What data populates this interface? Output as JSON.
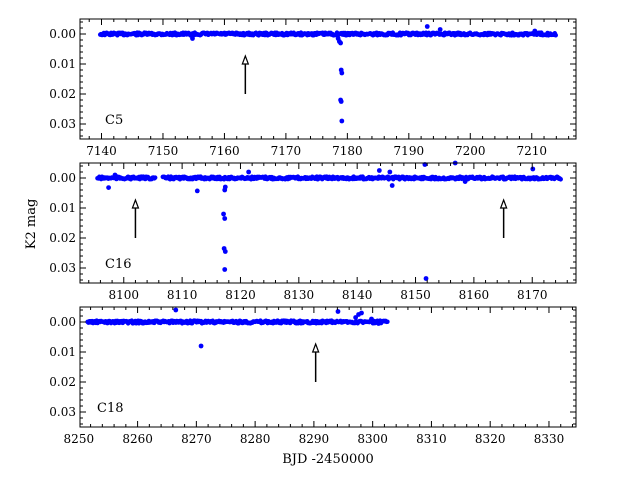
{
  "chart_data": {
    "type": "scatter",
    "ylabel": "K2 mag",
    "xlabel": "BJD -2450000",
    "marker_color": "#0000ff",
    "panels": [
      {
        "label": "C5",
        "xlim": [
          7136.5,
          7217.2
        ],
        "ylim": [
          0.035,
          -0.005
        ],
        "xticks": [
          7140,
          7150,
          7160,
          7170,
          7180,
          7190,
          7200,
          7210
        ],
        "yticks": [
          0.0,
          0.01,
          0.02,
          0.03
        ],
        "ytick_labels": [
          "0.00",
          "0.01",
          "0.02",
          "0.03"
        ],
        "baseline_segments": [
          [
            7139.8,
            7214.0
          ]
        ],
        "arrows_x": [
          7163.4
        ],
        "points": [
          [
            7154.8,
            0.0015
          ],
          [
            7178.5,
            0.0015
          ],
          [
            7178.7,
            0.0025
          ],
          [
            7178.9,
            0.003
          ],
          [
            7179.0,
            0.012
          ],
          [
            7179.1,
            0.013
          ],
          [
            7178.9,
            0.022
          ],
          [
            7179.0,
            0.0225
          ],
          [
            7179.1,
            0.029
          ],
          [
            7193.0,
            -0.0025
          ],
          [
            7195.1,
            -0.0015
          ],
          [
            7210.5,
            -0.001
          ]
        ]
      },
      {
        "label": "C16",
        "xlim": [
          8092.5,
          8177.5
        ],
        "ylim": [
          0.035,
          -0.005
        ],
        "xticks": [
          8100,
          8110,
          8120,
          8130,
          8140,
          8150,
          8160,
          8170
        ],
        "yticks": [
          0.0,
          0.01,
          0.02,
          0.03
        ],
        "ytick_labels": [
          "0.00",
          "0.01",
          "0.02",
          "0.03"
        ],
        "baseline_segments": [
          [
            8095.5,
            8105.5
          ],
          [
            8106.7,
            8175.0
          ]
        ],
        "arrows_x": [
          8102.0,
          8165.1
        ],
        "points": [
          [
            8097.4,
            0.0032
          ],
          [
            8098.5,
            -0.001
          ],
          [
            8112.6,
            0.0043
          ],
          [
            8117.3,
            0.004
          ],
          [
            8117.4,
            0.003
          ],
          [
            8117.1,
            0.012
          ],
          [
            8117.3,
            0.0135
          ],
          [
            8117.2,
            0.0235
          ],
          [
            8117.4,
            0.0245
          ],
          [
            8117.3,
            0.0305
          ],
          [
            8121.4,
            -0.002
          ],
          [
            8143.8,
            -0.0025
          ],
          [
            8145.6,
            -0.002
          ],
          [
            8146.0,
            0.0025
          ],
          [
            8151.6,
            -0.0045
          ],
          [
            8151.8,
            0.0335
          ],
          [
            8156.8,
            -0.005
          ],
          [
            8158.5,
            0.0012
          ],
          [
            8170.1,
            -0.003
          ]
        ]
      },
      {
        "label": "C18",
        "xlim": [
          8250.2,
          8334.6
        ],
        "ylim": [
          0.035,
          -0.005
        ],
        "xticks": [
          8250,
          8260,
          8270,
          8280,
          8290,
          8300,
          8310,
          8320,
          8330
        ],
        "yticks": [
          0.0,
          0.01,
          0.02,
          0.03
        ],
        "ytick_labels": [
          "0.00",
          "0.01",
          "0.02",
          "0.03"
        ],
        "baseline_segments": [
          [
            8251.5,
            8302.5
          ]
        ],
        "arrows_x": [
          8290.3
        ],
        "points": [
          [
            8266.5,
            -0.004
          ],
          [
            8270.8,
            0.008
          ],
          [
            8294.1,
            -0.0035
          ],
          [
            8297.1,
            -0.0015
          ],
          [
            8297.6,
            -0.0025
          ],
          [
            8298.1,
            -0.003
          ],
          [
            8299.8,
            -0.001
          ],
          [
            8301.0,
            0.0005
          ]
        ]
      }
    ]
  }
}
